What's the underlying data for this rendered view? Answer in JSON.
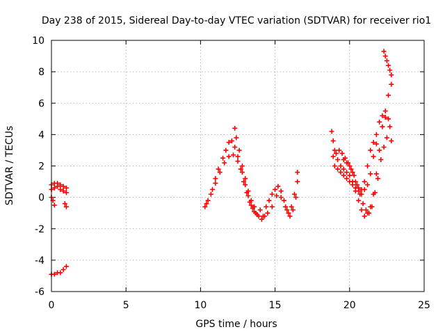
{
  "chart_data": {
    "type": "scatter",
    "title": "Day 238 of 2015, Sidereal Day-to-day VTEC variation (SDTVAR) for receiver rio1",
    "xlabel": "GPS time / hours",
    "ylabel": "SDTVAR / TECUs",
    "xlim": [
      0,
      25
    ],
    "ylim": [
      -6,
      10
    ],
    "xticks": [
      0,
      5,
      10,
      15,
      20,
      25
    ],
    "yticks": [
      -6,
      -4,
      -2,
      0,
      2,
      4,
      6,
      8,
      10
    ],
    "grid": true,
    "marker": "+",
    "color": "#ff0000",
    "series": [
      {
        "points": [
          [
            0.0,
            0.8
          ],
          [
            0.2,
            0.9
          ],
          [
            0.4,
            0.9
          ],
          [
            0.6,
            0.8
          ],
          [
            0.8,
            0.7
          ],
          [
            1.0,
            0.6
          ],
          [
            0.0,
            0.5
          ],
          [
            0.2,
            0.6
          ],
          [
            0.4,
            0.7
          ],
          [
            0.6,
            0.5
          ],
          [
            0.8,
            0.4
          ],
          [
            1.0,
            0.3
          ],
          [
            0.0,
            0.0
          ],
          [
            0.1,
            -0.2
          ],
          [
            0.2,
            -0.5
          ],
          [
            0.9,
            -0.4
          ],
          [
            1.0,
            -0.6
          ],
          [
            0.0,
            -4.9
          ],
          [
            0.2,
            -4.9
          ],
          [
            0.4,
            -4.8
          ],
          [
            0.6,
            -4.8
          ],
          [
            0.8,
            -4.6
          ],
          [
            1.0,
            -4.4
          ]
        ]
      },
      {
        "points": [
          [
            10.3,
            -0.6
          ],
          [
            10.5,
            -0.2
          ],
          [
            10.8,
            0.5
          ],
          [
            11.0,
            1.2
          ],
          [
            11.2,
            1.8
          ],
          [
            11.5,
            2.5
          ],
          [
            11.7,
            3.0
          ],
          [
            11.9,
            3.5
          ],
          [
            12.1,
            3.6
          ],
          [
            12.3,
            3.2
          ],
          [
            12.5,
            2.6
          ],
          [
            12.7,
            1.8
          ],
          [
            12.9,
            1.0
          ],
          [
            13.1,
            0.3
          ],
          [
            13.3,
            -0.3
          ],
          [
            13.5,
            -0.7
          ],
          [
            13.7,
            -1.0
          ],
          [
            13.9,
            -1.2
          ],
          [
            14.1,
            -1.4
          ],
          [
            14.3,
            -1.2
          ],
          [
            10.4,
            -0.4
          ],
          [
            10.7,
            0.2
          ],
          [
            11.0,
            0.9
          ],
          [
            11.3,
            1.6
          ],
          [
            11.6,
            2.2
          ],
          [
            11.9,
            2.6
          ],
          [
            12.2,
            2.7
          ],
          [
            12.5,
            2.3
          ],
          [
            12.8,
            1.6
          ],
          [
            13.0,
            0.8
          ],
          [
            13.2,
            0.1
          ],
          [
            13.4,
            -0.5
          ],
          [
            13.6,
            -0.9
          ],
          [
            13.8,
            -1.1
          ],
          [
            12.3,
            4.4
          ],
          [
            12.4,
            3.8
          ],
          [
            12.6,
            3.0
          ],
          [
            12.8,
            2.0
          ],
          [
            13.0,
            1.2
          ],
          [
            13.2,
            0.4
          ],
          [
            13.4,
            -0.2
          ],
          [
            13.6,
            -0.6
          ],
          [
            14.0,
            -0.8
          ],
          [
            14.2,
            -1.2
          ],
          [
            14.4,
            -0.6
          ],
          [
            14.6,
            -0.2
          ],
          [
            14.8,
            0.2
          ],
          [
            15.0,
            0.5
          ],
          [
            15.2,
            0.7
          ],
          [
            15.4,
            0.4
          ],
          [
            15.6,
            -0.2
          ],
          [
            15.8,
            -0.8
          ],
          [
            16.0,
            -1.2
          ],
          [
            16.2,
            -0.8
          ],
          [
            16.4,
            0.0
          ],
          [
            16.5,
            1.0
          ],
          [
            16.5,
            1.6
          ],
          [
            14.5,
            -1.0
          ],
          [
            14.8,
            -0.6
          ],
          [
            15.1,
            0.1
          ],
          [
            15.4,
            0.0
          ],
          [
            15.7,
            -0.6
          ],
          [
            15.9,
            -1.0
          ],
          [
            16.1,
            -0.6
          ],
          [
            16.3,
            0.2
          ]
        ]
      },
      {
        "points": [
          [
            18.8,
            4.2
          ],
          [
            18.9,
            3.6
          ],
          [
            19.0,
            3.0
          ],
          [
            19.2,
            2.4
          ],
          [
            19.4,
            2.0
          ],
          [
            19.6,
            1.8
          ],
          [
            19.8,
            1.6
          ],
          [
            20.0,
            1.4
          ],
          [
            20.2,
            1.0
          ],
          [
            20.4,
            0.4
          ],
          [
            20.6,
            -0.2
          ],
          [
            20.8,
            -0.8
          ],
          [
            21.0,
            -1.2
          ],
          [
            21.2,
            -1.0
          ],
          [
            21.4,
            -0.6
          ],
          [
            21.6,
            0.2
          ],
          [
            21.8,
            1.5
          ],
          [
            22.0,
            3.0
          ],
          [
            22.2,
            4.5
          ],
          [
            22.4,
            5.5
          ],
          [
            22.6,
            6.5
          ],
          [
            22.8,
            7.2
          ],
          [
            18.9,
            2.6
          ],
          [
            19.1,
            2.8
          ],
          [
            19.3,
            3.0
          ],
          [
            19.5,
            2.8
          ],
          [
            19.7,
            2.5
          ],
          [
            19.9,
            2.2
          ],
          [
            20.1,
            1.8
          ],
          [
            20.3,
            1.4
          ],
          [
            20.5,
            0.8
          ],
          [
            20.7,
            0.2
          ],
          [
            20.9,
            -0.4
          ],
          [
            21.1,
            -0.8
          ],
          [
            21.3,
            -1.0
          ],
          [
            21.5,
            -0.6
          ],
          [
            21.7,
            0.3
          ],
          [
            21.9,
            1.2
          ],
          [
            22.1,
            2.4
          ],
          [
            22.3,
            3.2
          ],
          [
            22.5,
            3.8
          ],
          [
            22.7,
            4.5
          ],
          [
            19.0,
            2.0
          ],
          [
            19.2,
            1.8
          ],
          [
            19.4,
            1.6
          ],
          [
            19.6,
            1.4
          ],
          [
            19.8,
            1.2
          ],
          [
            20.0,
            1.0
          ],
          [
            20.2,
            0.8
          ],
          [
            20.4,
            0.6
          ],
          [
            20.6,
            0.4
          ],
          [
            20.8,
            0.5
          ],
          [
            21.0,
            1.0
          ],
          [
            21.2,
            2.0
          ],
          [
            21.4,
            3.0
          ],
          [
            21.6,
            3.5
          ],
          [
            21.8,
            4.0
          ],
          [
            22.0,
            4.8
          ],
          [
            22.2,
            5.2
          ],
          [
            22.4,
            5.1
          ],
          [
            22.6,
            5.0
          ],
          [
            22.8,
            3.6
          ],
          [
            19.6,
            2.4
          ],
          [
            19.8,
            2.2
          ],
          [
            20.0,
            2.0
          ],
          [
            20.2,
            1.6
          ],
          [
            20.4,
            1.0
          ],
          [
            20.6,
            0.6
          ],
          [
            20.8,
            0.2
          ],
          [
            21.0,
            0.5
          ],
          [
            21.2,
            0.8
          ],
          [
            21.4,
            1.5
          ],
          [
            21.6,
            2.6
          ],
          [
            21.8,
            3.4
          ],
          [
            22.3,
            9.3
          ],
          [
            22.4,
            9.0
          ],
          [
            22.5,
            8.7
          ],
          [
            22.6,
            8.4
          ],
          [
            22.7,
            8.1
          ],
          [
            22.8,
            7.8
          ]
        ]
      }
    ]
  }
}
